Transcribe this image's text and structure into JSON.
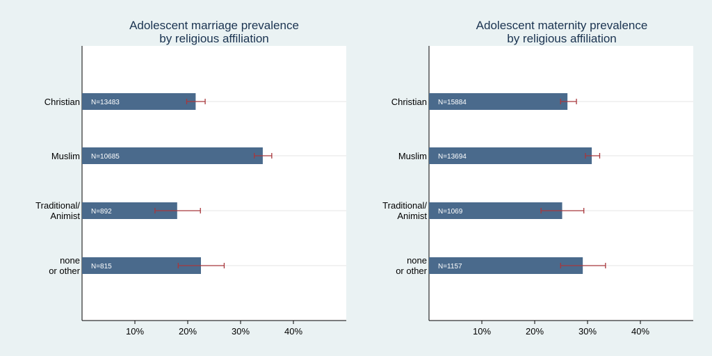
{
  "colors": {
    "background": "#eaf2f3",
    "plot_background": "#ffffff",
    "bar": "#4a6a8c",
    "error_bar": "#a8373c",
    "grid": "#e6e6e6",
    "text": "#000000",
    "title": "#1a3350"
  },
  "chart_data": [
    {
      "type": "bar",
      "orientation": "horizontal",
      "title": [
        "Adolescent marriage prevalence",
        "by religious affiliation"
      ],
      "categories": [
        [
          "Christian"
        ],
        [
          "Muslim"
        ],
        [
          "Traditional/",
          "Animist"
        ],
        [
          "none",
          "or other"
        ]
      ],
      "values": [
        21.5,
        34.2,
        18.0,
        22.5
      ],
      "ci_low": [
        19.8,
        32.6,
        13.8,
        18.2
      ],
      "ci_high": [
        23.3,
        35.9,
        22.4,
        26.9
      ],
      "bar_labels": [
        "N=13483",
        "N=10685",
        "N=892",
        "N=815"
      ],
      "xlim": [
        0,
        50
      ],
      "xticks": [
        10,
        20,
        30,
        40
      ],
      "xtick_labels": [
        "10%",
        "20%",
        "30%",
        "40%"
      ],
      "grid": true
    },
    {
      "type": "bar",
      "orientation": "horizontal",
      "title": [
        "Adolescent maternity prevalence",
        "by religious affiliation"
      ],
      "categories": [
        [
          "Christian"
        ],
        [
          "Muslim"
        ],
        [
          "Traditional/",
          "Animist"
        ],
        [
          "none",
          "or other"
        ]
      ],
      "values": [
        26.2,
        30.8,
        25.2,
        29.1
      ],
      "ci_low": [
        24.9,
        29.6,
        21.2,
        24.9
      ],
      "ci_high": [
        27.9,
        32.3,
        29.3,
        33.4
      ],
      "bar_labels": [
        "N=15884",
        "N=13694",
        "N=1069",
        "N=1157"
      ],
      "xlim": [
        0,
        50
      ],
      "xticks": [
        10,
        20,
        30,
        40
      ],
      "xtick_labels": [
        "10%",
        "20%",
        "30%",
        "40%"
      ],
      "grid": true
    }
  ]
}
